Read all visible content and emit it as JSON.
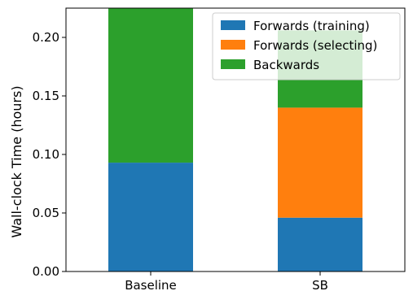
{
  "chart_data": {
    "type": "bar",
    "stacked": true,
    "categories": [
      "Baseline",
      "SB"
    ],
    "series": [
      {
        "name": "Forwards (training)",
        "color": "#1f77b4",
        "values": [
          0.093,
          0.046
        ]
      },
      {
        "name": "Forwards (selecting)",
        "color": "#ff7f0e",
        "values": [
          0.0,
          0.094
        ]
      },
      {
        "name": "Backwards",
        "color": "#2ca02c",
        "values": [
          0.132,
          0.066
        ]
      }
    ],
    "title": "",
    "xlabel": "",
    "ylabel": "Wall-clock Time (hours)",
    "ylim": [
      0,
      0.225
    ],
    "yticks": [
      0.0,
      0.05,
      0.1,
      0.15,
      0.2
    ],
    "ytick_labels": [
      "0.00",
      "0.05",
      "0.10",
      "0.15",
      "0.20"
    ],
    "grid": false,
    "legend": "top-right"
  }
}
